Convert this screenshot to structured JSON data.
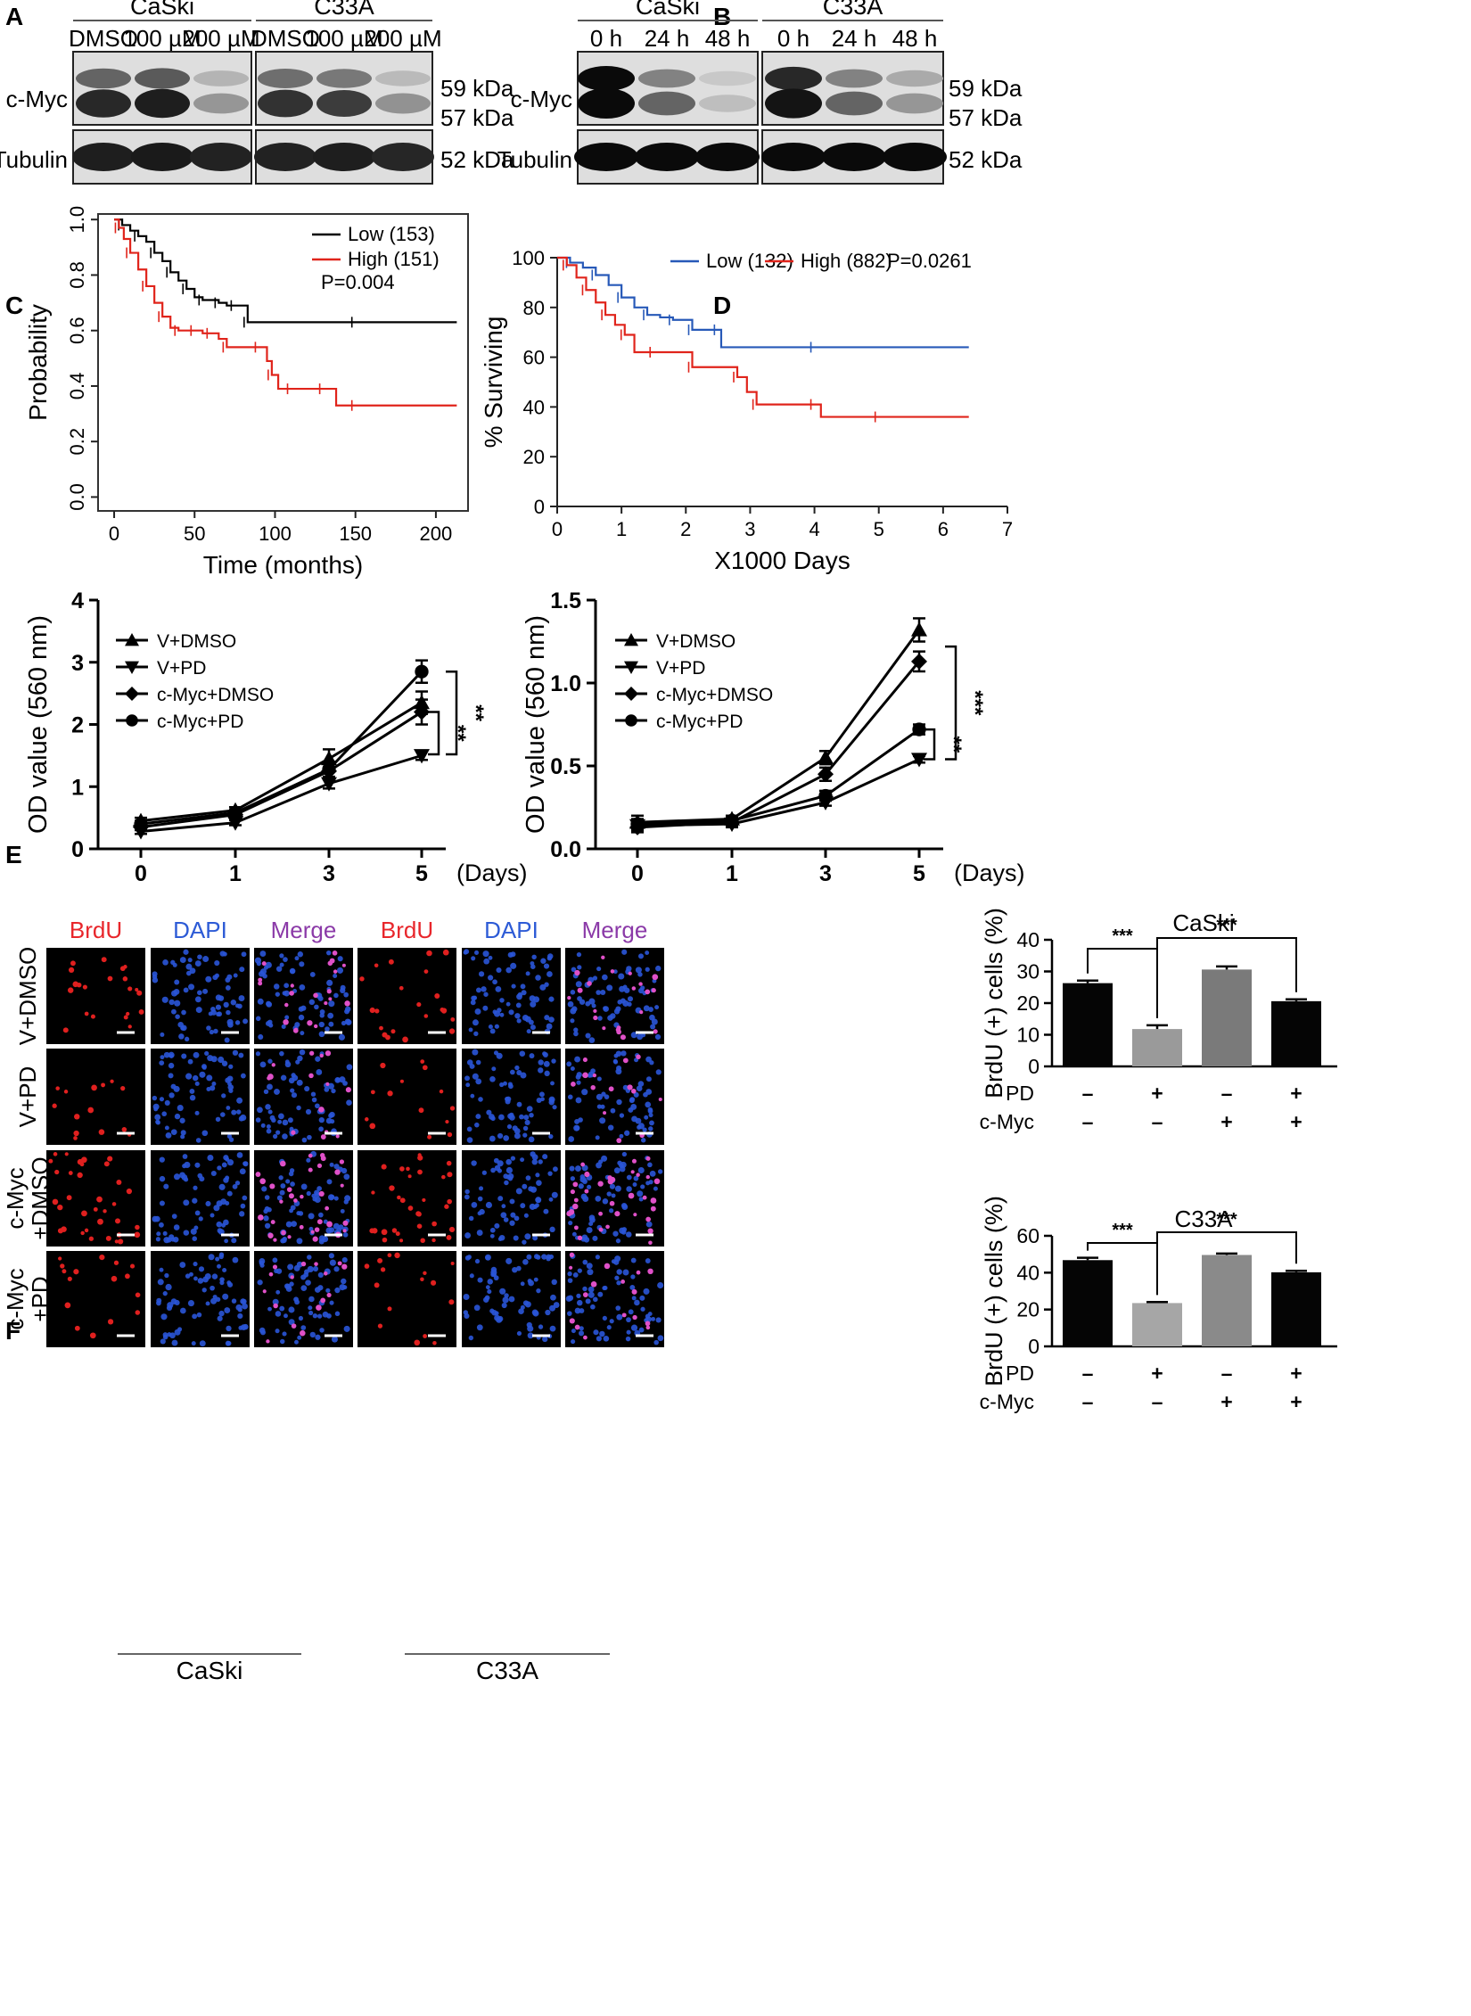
{
  "panels": {
    "A": {
      "label": "A",
      "groups": [
        "CaSki",
        "C33A"
      ],
      "lanes": [
        "DMSO",
        "100 µM",
        "200 µM",
        "DMSO",
        "100 µM",
        "200 µM"
      ],
      "rows": [
        "c-Myc",
        "Tubulin"
      ],
      "sizes": [
        "59 kDa",
        "57 kDa",
        "52 kDa"
      ],
      "cmyc_intensity": [
        [
          0.55,
          0.85
        ],
        [
          0.6,
          0.9
        ],
        [
          0.15,
          0.3
        ],
        [
          0.5,
          0.8
        ],
        [
          0.45,
          0.75
        ],
        [
          0.12,
          0.32
        ]
      ],
      "tubulin_intensity": [
        0.9,
        0.92,
        0.88,
        0.88,
        0.9,
        0.86
      ]
    },
    "B": {
      "label": "B",
      "groups": [
        "CaSki",
        "C33A"
      ],
      "lanes": [
        "0 h",
        "24 h",
        "48 h",
        "0 h",
        "24 h",
        "48 h"
      ],
      "rows": [
        "c-Myc",
        "Tubulin"
      ],
      "sizes": [
        "59 kDa",
        "57 kDa",
        "52 kDa"
      ],
      "cmyc_intensity": [
        [
          1.0,
          1.0
        ],
        [
          0.4,
          0.55
        ],
        [
          0.05,
          0.1
        ],
        [
          0.85,
          0.95
        ],
        [
          0.4,
          0.55
        ],
        [
          0.2,
          0.3
        ]
      ],
      "tubulin_intensity": [
        1.0,
        1.0,
        1.0,
        1.0,
        1.0,
        1.0
      ]
    },
    "F": {
      "label": "F",
      "col_headers": [
        "BrdU",
        "DAPI",
        "Merge",
        "BrdU",
        "DAPI",
        "Merge"
      ],
      "col_colors": [
        "#e8262b",
        "#2d5bd6",
        "#8b3aa8",
        "#e8262b",
        "#2d5bd6",
        "#8b3aa8"
      ],
      "row_labels": [
        "V+DMSO",
        "V+PD",
        "c-Myc\n+DMSO",
        "c-Myc\n+PD"
      ],
      "groups": [
        "CaSki",
        "C33A"
      ],
      "brdu_density": [
        0.3,
        0.15,
        0.55,
        0.2
      ]
    }
  },
  "chart_data": [
    {
      "id": "C",
      "label": "C",
      "type": "line",
      "title": "",
      "xlabel": "Time (months)",
      "ylabel": "Probability",
      "xlim": [
        -10,
        220
      ],
      "ylim": [
        -0.05,
        1.02
      ],
      "xticks": [
        0,
        50,
        100,
        150,
        200
      ],
      "yticks": [
        0.0,
        0.2,
        0.4,
        0.6,
        0.8,
        1.0
      ],
      "annotation": "P=0.004",
      "series": [
        {
          "name": "Low (153)",
          "color": "#000000",
          "x": [
            0,
            5,
            10,
            15,
            20,
            25,
            30,
            35,
            40,
            45,
            50,
            55,
            60,
            65,
            70,
            75,
            80,
            83,
            100,
            150,
            213
          ],
          "y": [
            1.0,
            0.98,
            0.96,
            0.94,
            0.92,
            0.88,
            0.85,
            0.81,
            0.78,
            0.75,
            0.72,
            0.71,
            0.71,
            0.7,
            0.69,
            0.69,
            0.69,
            0.63,
            0.63,
            0.63,
            0.63
          ]
        },
        {
          "name": "High (151)",
          "color": "#e0241b",
          "x": [
            0,
            3,
            6,
            10,
            15,
            20,
            25,
            30,
            35,
            40,
            45,
            50,
            55,
            60,
            65,
            70,
            80,
            90,
            95,
            98,
            102,
            110,
            120,
            130,
            138,
            150,
            213
          ],
          "y": [
            1.0,
            0.97,
            0.93,
            0.88,
            0.82,
            0.76,
            0.7,
            0.65,
            0.61,
            0.6,
            0.6,
            0.6,
            0.59,
            0.59,
            0.57,
            0.54,
            0.54,
            0.54,
            0.49,
            0.44,
            0.39,
            0.39,
            0.39,
            0.39,
            0.33,
            0.33,
            0.33
          ]
        }
      ]
    },
    {
      "id": "D",
      "label": "D",
      "type": "line",
      "title": "",
      "xlabel": "X1000 Days",
      "ylabel": "% Surviving",
      "xlim": [
        0,
        7
      ],
      "ylim": [
        0,
        100
      ],
      "xticks": [
        0,
        1,
        2,
        3,
        4,
        5,
        6,
        7
      ],
      "yticks": [
        0,
        20,
        40,
        60,
        80,
        100
      ],
      "annotation": "P=0.0261",
      "series": [
        {
          "name": "Low (132)",
          "color": "#2759b8",
          "x": [
            0,
            0.2,
            0.4,
            0.6,
            0.8,
            1.0,
            1.2,
            1.4,
            1.6,
            1.8,
            2.0,
            2.1,
            2.3,
            2.5,
            2.55,
            4.0,
            6.4
          ],
          "y": [
            100,
            98,
            96,
            93,
            89,
            84,
            80,
            77,
            76,
            75,
            75,
            71,
            71,
            71,
            64,
            64,
            64
          ]
        },
        {
          "name": "High (882)",
          "color": "#e0241b",
          "x": [
            0,
            0.15,
            0.3,
            0.45,
            0.6,
            0.75,
            0.9,
            1.05,
            1.2,
            1.5,
            1.9,
            2.1,
            2.6,
            2.8,
            2.95,
            3.1,
            3.5,
            4.0,
            4.1,
            5.0,
            6.4
          ],
          "y": [
            100,
            97,
            92,
            87,
            82,
            77,
            73,
            69,
            62,
            62,
            62,
            56,
            56,
            52,
            46,
            41,
            41,
            41,
            36,
            36,
            36
          ]
        }
      ]
    },
    {
      "id": "E-left",
      "label": "E",
      "type": "line",
      "title": "",
      "xlabel": "(Days)",
      "ylabel": "OD value (560 nm)",
      "ylim": [
        0,
        4
      ],
      "yticks": [
        0,
        1,
        2,
        3,
        4
      ],
      "categories": [
        "0",
        "1",
        "3",
        "5"
      ],
      "significance": [
        "**",
        "**"
      ],
      "series": [
        {
          "name": "V+DMSO",
          "marker": "triangle-up",
          "values": [
            0.45,
            0.62,
            1.45,
            2.35
          ],
          "errors": [
            0.05,
            0.05,
            0.15,
            0.18
          ]
        },
        {
          "name": "V+PD",
          "marker": "triangle-down",
          "values": [
            0.28,
            0.42,
            1.05,
            1.5
          ],
          "errors": [
            0.04,
            0.04,
            0.08,
            0.07
          ]
        },
        {
          "name": "c-Myc+DMSO",
          "marker": "diamond",
          "values": [
            0.35,
            0.55,
            1.25,
            2.2
          ],
          "errors": [
            0.05,
            0.05,
            0.12,
            0.2
          ]
        },
        {
          "name": "c-Myc+PD",
          "marker": "circle",
          "values": [
            0.4,
            0.58,
            1.28,
            2.85
          ],
          "errors": [
            0.05,
            0.05,
            0.12,
            0.18
          ]
        }
      ]
    },
    {
      "id": "E-right",
      "label": "",
      "type": "line",
      "title": "",
      "xlabel": "(Days)",
      "ylabel": "OD value (560 nm)",
      "ylim": [
        0,
        1.5
      ],
      "yticks": [
        0.0,
        0.5,
        1.0,
        1.5
      ],
      "categories": [
        "0",
        "1",
        "3",
        "5"
      ],
      "significance": [
        "**",
        "***"
      ],
      "series": [
        {
          "name": "V+DMSO",
          "marker": "triangle-up",
          "values": [
            0.16,
            0.18,
            0.55,
            1.32
          ],
          "errors": [
            0.04,
            0.02,
            0.04,
            0.07
          ]
        },
        {
          "name": "V+PD",
          "marker": "triangle-down",
          "values": [
            0.14,
            0.15,
            0.28,
            0.54
          ],
          "errors": [
            0.03,
            0.02,
            0.02,
            0.02
          ]
        },
        {
          "name": "c-Myc+DMSO",
          "marker": "diamond",
          "values": [
            0.13,
            0.16,
            0.45,
            1.13
          ],
          "errors": [
            0.03,
            0.02,
            0.04,
            0.06
          ]
        },
        {
          "name": "c-Myc+PD",
          "marker": "circle",
          "values": [
            0.15,
            0.17,
            0.32,
            0.72
          ],
          "errors": [
            0.03,
            0.02,
            0.03,
            0.03
          ]
        }
      ]
    },
    {
      "id": "F-CaSki",
      "type": "bar",
      "title": "CaSki",
      "ylabel": "BrdU (+) cells (%)",
      "ylim": [
        0,
        40
      ],
      "yticks": [
        0,
        10,
        20,
        30,
        40
      ],
      "values": [
        26.3,
        11.8,
        30.6,
        20.6
      ],
      "errors": [
        0.8,
        1.2,
        1.0,
        0.6
      ],
      "colors": [
        "#050505",
        "#9a9a9a",
        "#7a7a7a",
        "#050505"
      ],
      "PD": [
        "–",
        "+",
        "–",
        "+"
      ],
      "c-Myc": [
        "–",
        "–",
        "+",
        "+"
      ],
      "significance": [
        "***",
        "***"
      ]
    },
    {
      "id": "F-C33A",
      "type": "bar",
      "title": "C33A",
      "ylabel": "BrdU (+) cells (%)",
      "ylim": [
        0,
        60
      ],
      "yticks": [
        0,
        20,
        40,
        60
      ],
      "values": [
        46.8,
        23.5,
        49.6,
        40.2
      ],
      "errors": [
        1.3,
        0.6,
        0.8,
        0.8
      ],
      "colors": [
        "#050505",
        "#a6a6a6",
        "#8a8a8a",
        "#050505"
      ],
      "PD": [
        "–",
        "+",
        "–",
        "+"
      ],
      "c-Myc": [
        "–",
        "–",
        "+",
        "+"
      ],
      "significance": [
        "***",
        "***"
      ]
    }
  ],
  "row_labels": {
    "pd": "PD",
    "cmyc": "c-Myc"
  }
}
